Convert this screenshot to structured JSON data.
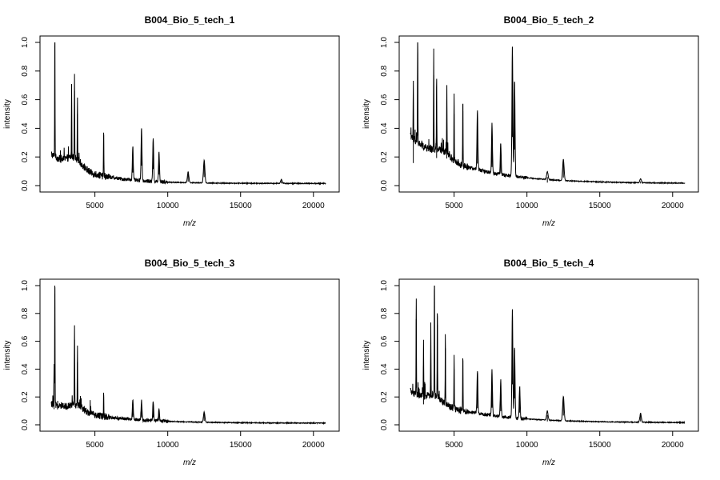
{
  "chart_data": [
    {
      "type": "line",
      "title": "B004_Bio_5_tech_1",
      "xlabel": "m/z",
      "ylabel": "intensity",
      "xlim": [
        2000,
        21000
      ],
      "ylim": [
        0,
        1.0
      ],
      "x_ticks": [
        5000,
        10000,
        15000,
        20000
      ],
      "y_ticks": [
        0.0,
        0.2,
        0.4,
        0.6,
        0.8,
        1.0
      ],
      "grid": false,
      "baseline": {
        "start": 0.22,
        "decay": 2600,
        "floor": 0.015,
        "hump_center": 3600,
        "hump_height": 0.07
      },
      "peaks": [
        {
          "mz": 2250,
          "intensity": 1.0
        },
        {
          "mz": 3400,
          "intensity": 0.55
        },
        {
          "mz": 3600,
          "intensity": 0.66
        },
        {
          "mz": 3800,
          "intensity": 0.5
        },
        {
          "mz": 5600,
          "intensity": 0.37
        },
        {
          "mz": 7600,
          "intensity": 0.26
        },
        {
          "mz": 8200,
          "intensity": 0.4
        },
        {
          "mz": 9000,
          "intensity": 0.33
        },
        {
          "mz": 9400,
          "intensity": 0.22
        },
        {
          "mz": 11400,
          "intensity": 0.08
        },
        {
          "mz": 12500,
          "intensity": 0.17
        },
        {
          "mz": 17800,
          "intensity": 0.03
        }
      ]
    },
    {
      "type": "line",
      "title": "B004_Bio_5_tech_2",
      "xlabel": "m/z",
      "ylabel": "intensity",
      "xlim": [
        2000,
        21000
      ],
      "ylim": [
        0,
        1.0
      ],
      "x_ticks": [
        5000,
        10000,
        15000,
        20000
      ],
      "y_ticks": [
        0.0,
        0.2,
        0.4,
        0.6,
        0.8,
        1.0
      ],
      "grid": false,
      "baseline": {
        "start": 0.34,
        "decay": 3800,
        "floor": 0.015,
        "hump_center": 4200,
        "hump_height": 0.05
      },
      "peaks": [
        {
          "mz": 2200,
          "intensity": 0.45
        },
        {
          "mz": 2500,
          "intensity": 1.0
        },
        {
          "mz": 3600,
          "intensity": 0.77
        },
        {
          "mz": 3800,
          "intensity": 0.55
        },
        {
          "mz": 4500,
          "intensity": 0.54
        },
        {
          "mz": 5000,
          "intensity": 0.5
        },
        {
          "mz": 5600,
          "intensity": 0.52
        },
        {
          "mz": 6600,
          "intensity": 0.44
        },
        {
          "mz": 7600,
          "intensity": 0.37
        },
        {
          "mz": 8200,
          "intensity": 0.24
        },
        {
          "mz": 9000,
          "intensity": 0.97
        },
        {
          "mz": 9150,
          "intensity": 0.72
        },
        {
          "mz": 11400,
          "intensity": 0.06
        },
        {
          "mz": 12500,
          "intensity": 0.16
        },
        {
          "mz": 17800,
          "intensity": 0.03
        }
      ]
    },
    {
      "type": "line",
      "title": "B004_Bio_5_tech_3",
      "xlabel": "m/z",
      "ylabel": "intensity",
      "xlim": [
        2000,
        21000
      ],
      "ylim": [
        0,
        1.0
      ],
      "x_ticks": [
        5000,
        10000,
        15000,
        20000
      ],
      "y_ticks": [
        0.0,
        0.2,
        0.4,
        0.6,
        0.8,
        1.0
      ],
      "grid": false,
      "baseline": {
        "start": 0.15,
        "decay": 3400,
        "floor": 0.012,
        "hump_center": 3700,
        "hump_height": 0.05
      },
      "peaks": [
        {
          "mz": 2200,
          "intensity": 0.32
        },
        {
          "mz": 2250,
          "intensity": 1.0
        },
        {
          "mz": 3600,
          "intensity": 0.61
        },
        {
          "mz": 3800,
          "intensity": 0.45
        },
        {
          "mz": 5600,
          "intensity": 0.2
        },
        {
          "mz": 7600,
          "intensity": 0.16
        },
        {
          "mz": 8200,
          "intensity": 0.15
        },
        {
          "mz": 9000,
          "intensity": 0.15
        },
        {
          "mz": 9400,
          "intensity": 0.09
        },
        {
          "mz": 12500,
          "intensity": 0.08
        }
      ]
    },
    {
      "type": "line",
      "title": "B004_Bio_5_tech_4",
      "xlabel": "m/z",
      "ylabel": "intensity",
      "xlim": [
        2000,
        21000
      ],
      "ylim": [
        0,
        1.0
      ],
      "x_ticks": [
        5000,
        10000,
        15000,
        20000
      ],
      "y_ticks": [
        0.0,
        0.2,
        0.4,
        0.6,
        0.8,
        1.0
      ],
      "grid": false,
      "baseline": {
        "start": 0.24,
        "decay": 3800,
        "floor": 0.015,
        "hump_center": 3700,
        "hump_height": 0.05
      },
      "peaks": [
        {
          "mz": 2400,
          "intensity": 0.76
        },
        {
          "mz": 2900,
          "intensity": 0.42
        },
        {
          "mz": 3400,
          "intensity": 0.57
        },
        {
          "mz": 3650,
          "intensity": 1.0
        },
        {
          "mz": 3850,
          "intensity": 0.72
        },
        {
          "mz": 4400,
          "intensity": 0.55
        },
        {
          "mz": 5000,
          "intensity": 0.4
        },
        {
          "mz": 5600,
          "intensity": 0.46
        },
        {
          "mz": 6600,
          "intensity": 0.34
        },
        {
          "mz": 7600,
          "intensity": 0.35
        },
        {
          "mz": 8200,
          "intensity": 0.28
        },
        {
          "mz": 9000,
          "intensity": 0.83
        },
        {
          "mz": 9150,
          "intensity": 0.54
        },
        {
          "mz": 9500,
          "intensity": 0.25
        },
        {
          "mz": 11400,
          "intensity": 0.07
        },
        {
          "mz": 12500,
          "intensity": 0.19
        },
        {
          "mz": 17800,
          "intensity": 0.07
        }
      ]
    }
  ]
}
